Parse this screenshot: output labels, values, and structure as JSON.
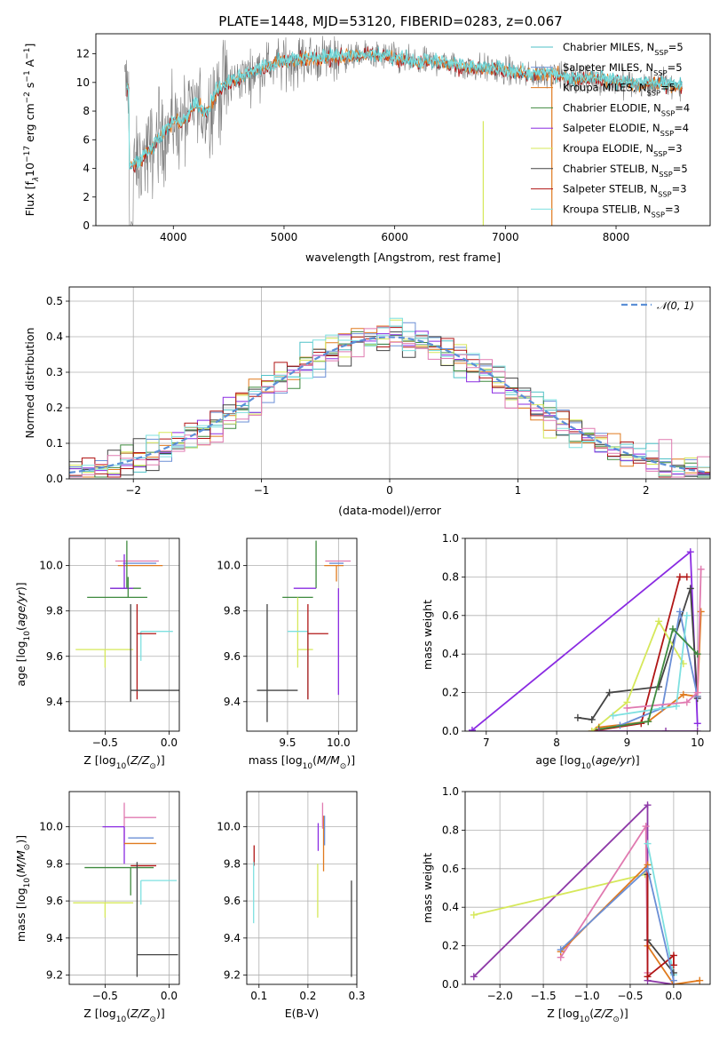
{
  "title": "PLATE=1448, MJD=53120, FIBERID=0283, z=0.067",
  "colors": {
    "Chabrier MILES": "#4fc1c7",
    "Salpeter MILES": "#6b8fd6",
    "Kroupa MILES": "#e07a1e",
    "Chabrier ELODIE": "#3f8a3f",
    "Salpeter ELODIE": "#8a2be2",
    "Kroupa ELODIE": "#d6e85a",
    "Chabrier STELIB": "#444444",
    "Salpeter STELIB": "#b01515",
    "Kroupa STELIB": "#7ee0e0",
    "pink": "#e07ab0",
    "purple2": "#8e3aa8"
  },
  "chart_data": [
    {
      "type": "line",
      "id": "spectrum",
      "xlabel": "wavelength [Angstrom, rest frame]",
      "ylabel": "Flux [f$_\\lambda$10$^{-17}$ erg cm$^{-2}$ s$^{-1}$ A$^{-1}$]",
      "xlim": [
        3300,
        8850
      ],
      "ylim": [
        0,
        13.4
      ],
      "xticks": [
        4000,
        5000,
        6000,
        7000,
        8000
      ],
      "yticks": [
        0,
        2,
        4,
        6,
        8,
        10,
        12
      ],
      "legend_position": "upper right",
      "legend": [
        {
          "label": "Chabrier MILES, N",
          "sub": "SSP",
          "eq": "=5"
        },
        {
          "label": "Salpeter MILES, N",
          "sub": "SSP",
          "eq": "=5"
        },
        {
          "label": "Kroupa MILES, N",
          "sub": "SSP",
          "eq": "=5"
        },
        {
          "label": "Chabrier ELODIE, N",
          "sub": "SSP",
          "eq": "=4"
        },
        {
          "label": "Salpeter ELODIE, N",
          "sub": "SSP",
          "eq": "=4"
        },
        {
          "label": "Kroupa ELODIE, N",
          "sub": "SSP",
          "eq": "=3"
        },
        {
          "label": "Chabrier STELIB, N",
          "sub": "SSP",
          "eq": "=5"
        },
        {
          "label": "Salpeter STELIB, N",
          "sub": "SSP",
          "eq": "=3"
        },
        {
          "label": "Kroupa STELIB, N",
          "sub": "SSP",
          "eq": "=3"
        }
      ],
      "continuum": {
        "x": [
          3600,
          3700,
          3800,
          3900,
          4000,
          4100,
          4200,
          4300,
          4400,
          4500,
          4600,
          4800,
          5000,
          5200,
          5400,
          5600,
          5800,
          6000,
          6200,
          6400,
          6600,
          6800,
          7000,
          7200,
          7400,
          7600,
          7800,
          8000,
          8200,
          8400,
          8600
        ],
        "y": [
          4.0,
          4.5,
          5.3,
          6.3,
          7.2,
          7.3,
          8.4,
          7.8,
          9.4,
          9.9,
          10.3,
          11.0,
          11.4,
          11.6,
          11.7,
          11.8,
          11.9,
          11.7,
          11.3,
          11.4,
          11.1,
          11.0,
          10.8,
          10.5,
          10.6,
          10.2,
          10.3,
          10.0,
          9.8,
          9.9,
          9.6
        ]
      },
      "data_dropouts": [
        [
          6800,
          7.3
        ],
        [
          7420,
          10.9
        ]
      ]
    },
    {
      "type": "bar",
      "id": "residual-histogram",
      "xlabel": "(data-model)/error",
      "ylabel": "Normed distribution",
      "xlim": [
        -2.5,
        2.5
      ],
      "ylim": [
        0,
        0.54
      ],
      "xticks": [
        -2,
        -1,
        0,
        1,
        2
      ],
      "yticks": [
        0.0,
        0.1,
        0.2,
        0.3,
        0.4,
        0.5
      ],
      "legend": [
        {
          "label": "𝒩(0, 1)"
        }
      ],
      "legend_position": "upper right",
      "gaussian": {
        "mu": 0,
        "sigma": 1
      },
      "bin_width": 0.1
    },
    {
      "type": "scatter",
      "id": "age-vs-Z",
      "xlabel": "Z [log10(Z/Z⊙)]",
      "ylabel": "age  [log10(age/yr)]",
      "xlim": [
        -0.78,
        0.08
      ],
      "ylim": [
        9.27,
        10.12
      ],
      "xticks": [
        -0.5,
        0.0
      ],
      "xticklabels": [
        "−0.5",
        "0.0"
      ],
      "yticks": [
        9.4,
        9.6,
        9.8,
        10.0
      ],
      "points": [
        {
          "x": -0.22,
          "y": 10.02,
          "xerr": [
            0.2,
            0.14
          ],
          "yerr": [
            0.0,
            0.0
          ],
          "c": "pink"
        },
        {
          "x": -0.2,
          "y": 10.01,
          "xerr": [
            0.16,
            0.1
          ],
          "yerr": [
            0.0,
            0.0
          ],
          "c": "Salpeter MILES"
        },
        {
          "x": -0.25,
          "y": 10.0,
          "xerr": [
            0.15,
            0.2
          ],
          "yerr": [
            0.0,
            0.0
          ],
          "c": "Kroupa MILES"
        },
        {
          "x": -0.33,
          "y": 9.9,
          "xerr": [
            0.13,
            0.11
          ],
          "yerr": [
            0.0,
            0.21
          ],
          "c": "Chabrier ELODIE"
        },
        {
          "x": -0.35,
          "y": 9.9,
          "xerr": [
            0.11,
            0.07
          ],
          "yerr": [
            0.0,
            0.15
          ],
          "c": "Salpeter ELODIE"
        },
        {
          "x": -0.32,
          "y": 9.86,
          "xerr": [
            0.32,
            0.15
          ],
          "yerr": [
            0.0,
            0.09
          ],
          "c": "Chabrier ELODIE"
        },
        {
          "x": -0.5,
          "y": 9.63,
          "xerr": [
            0.23,
            0.22
          ],
          "yerr": [
            0.08,
            0.0
          ],
          "c": "Kroupa ELODIE"
        },
        {
          "x": -0.22,
          "y": 9.71,
          "xerr": [
            0.0,
            0.25
          ],
          "yerr": [
            0.13,
            0.0
          ],
          "c": "Kroupa STELIB"
        },
        {
          "x": -0.25,
          "y": 9.7,
          "xerr": [
            0.0,
            0.15
          ],
          "yerr": [
            0.29,
            0.13
          ],
          "c": "Salpeter STELIB"
        },
        {
          "x": -0.3,
          "y": 9.45,
          "xerr": [
            0.0,
            0.38
          ],
          "yerr": [
            0.0,
            0.0
          ],
          "c": "Chabrier STELIB"
        },
        {
          "x": -0.3,
          "y": 9.45,
          "xerr": [
            0.0,
            0.0
          ],
          "yerr": [
            0.05,
            0.38
          ],
          "c": "Chabrier STELIB"
        }
      ]
    },
    {
      "type": "scatter",
      "id": "age-vs-mass",
      "xlabel": "mass [log10(M/M⊙)]",
      "ylabel": "",
      "xlim": [
        9.1,
        10.18
      ],
      "ylim": [
        9.27,
        10.12
      ],
      "xticks": [
        9.5,
        10.0
      ],
      "xticklabels": [
        "9.5",
        "10.0"
      ],
      "yticks": [
        9.4,
        9.6,
        9.8,
        10.0
      ],
      "points": [
        {
          "x": 10.0,
          "y": 10.02,
          "xerr": [
            0.13,
            0.12
          ],
          "yerr": [
            0.0,
            0.0
          ],
          "c": "pink"
        },
        {
          "x": 9.98,
          "y": 10.01,
          "xerr": [
            0.07,
            0.07
          ],
          "yerr": [
            0.0,
            0.0
          ],
          "c": "Salpeter MILES"
        },
        {
          "x": 9.98,
          "y": 10.0,
          "xerr": [
            0.12,
            0.07
          ],
          "yerr": [
            0.07,
            0.0
          ],
          "c": "Kroupa MILES"
        },
        {
          "x": 9.78,
          "y": 9.9,
          "xerr": [
            0.0,
            0.0
          ],
          "yerr": [
            0.0,
            0.21
          ],
          "c": "Chabrier ELODIE"
        },
        {
          "x": 9.78,
          "y": 9.9,
          "xerr": [
            0.22,
            0.0
          ],
          "yerr": [
            0.0,
            0.0
          ],
          "c": "Salpeter ELODIE"
        },
        {
          "x": 10.0,
          "y": 9.9,
          "xerr": [
            0.0,
            0.0
          ],
          "yerr": [
            0.47,
            0.0
          ],
          "c": "Salpeter ELODIE"
        },
        {
          "x": 9.6,
          "y": 9.86,
          "xerr": [
            0.15,
            0.15
          ],
          "yerr": [
            0.0,
            0.0
          ],
          "c": "Chabrier ELODIE"
        },
        {
          "x": 9.6,
          "y": 9.63,
          "xerr": [
            0.0,
            0.15
          ],
          "yerr": [
            0.08,
            0.23
          ],
          "c": "Kroupa ELODIE"
        },
        {
          "x": 9.7,
          "y": 9.71,
          "xerr": [
            0.2,
            0.0
          ],
          "yerr": [
            0.3,
            0.0
          ],
          "c": "Kroupa STELIB"
        },
        {
          "x": 9.7,
          "y": 9.7,
          "xerr": [
            0.0,
            0.2
          ],
          "yerr": [
            0.29,
            0.13
          ],
          "c": "Salpeter STELIB"
        },
        {
          "x": 9.3,
          "y": 9.45,
          "xerr": [
            0.1,
            0.3
          ],
          "yerr": [
            0.14,
            0.38
          ],
          "c": "Chabrier STELIB"
        }
      ]
    },
    {
      "type": "line",
      "id": "massweight-vs-age",
      "xlabel": "age  [log10(age/yr)]",
      "ylabel": "mass weight",
      "xlim": [
        6.7,
        10.18
      ],
      "ylim": [
        0,
        1.0
      ],
      "xticks": [
        7,
        8,
        9,
        10
      ],
      "yticks": [
        0.0,
        0.2,
        0.4,
        0.6,
        0.8,
        1.0
      ],
      "series": [
        {
          "c": "Salpeter ELODIE",
          "x": [
            6.8,
            9.9,
            10.0
          ],
          "y": [
            0.005,
            0.93,
            0.04
          ]
        },
        {
          "c": "Salpeter STELIB",
          "x": [
            8.5,
            9.2,
            9.75,
            9.85
          ],
          "y": [
            0.0,
            0.04,
            0.8,
            0.8
          ]
        },
        {
          "c": "Chabrier STELIB",
          "x": [
            8.3,
            8.5,
            8.75,
            9.45,
            9.9,
            10.0
          ],
          "y": [
            0.07,
            0.06,
            0.2,
            0.23,
            0.74,
            0.17
          ]
        },
        {
          "c": "Kroupa ELODIE",
          "x": [
            8.5,
            9.0,
            9.45,
            9.8
          ],
          "y": [
            0.0,
            0.15,
            0.57,
            0.35
          ]
        },
        {
          "c": "Kroupa MILES",
          "x": [
            8.6,
            9.3,
            9.8,
            10.0,
            10.05
          ],
          "y": [
            0.02,
            0.05,
            0.19,
            0.18,
            0.62
          ]
        },
        {
          "c": "Salpeter MILES",
          "x": [
            8.9,
            9.5,
            9.75,
            10.0
          ],
          "y": [
            0.03,
            0.12,
            0.62,
            0.18
          ]
        },
        {
          "c": "Kroupa STELIB",
          "x": [
            8.8,
            9.7,
            9.85
          ],
          "y": [
            0.08,
            0.13,
            0.6
          ]
        },
        {
          "c": "pink",
          "x": [
            9.0,
            9.85,
            10.0,
            10.05
          ],
          "y": [
            0.12,
            0.15,
            0.2,
            0.84
          ]
        },
        {
          "c": "Chabrier ELODIE",
          "x": [
            8.6,
            9.3,
            9.65,
            10.0
          ],
          "y": [
            0.01,
            0.05,
            0.53,
            0.4
          ]
        },
        {
          "c": "purple2",
          "x": [
            8.6,
            9.55,
            10.0
          ],
          "y": [
            0.0,
            0.0,
            0.0
          ]
        }
      ]
    },
    {
      "type": "scatter",
      "id": "mass-vs-Z",
      "xlabel": "Z [log10(Z/Z⊙)]",
      "ylabel": "mass [log10(M/M⊙)]",
      "xlim": [
        -0.78,
        0.08
      ],
      "ylim": [
        9.15,
        10.19
      ],
      "xticks": [
        -0.5,
        0.0
      ],
      "xticklabels": [
        "−0.5",
        "0.0"
      ],
      "yticks": [
        9.2,
        9.4,
        9.6,
        9.8,
        10.0
      ],
      "points": [
        {
          "x": -0.35,
          "y": 10.05,
          "xerr": [
            0.0,
            0.25
          ],
          "yerr": [
            0.15,
            0.08
          ],
          "c": "pink"
        },
        {
          "x": -0.35,
          "y": 10.0,
          "xerr": [
            0.17,
            0.0
          ],
          "yerr": [
            0.2,
            0.0
          ],
          "c": "Salpeter ELODIE"
        },
        {
          "x": -0.22,
          "y": 9.94,
          "xerr": [
            0.1,
            0.1
          ],
          "yerr": [
            0.0,
            0.0
          ],
          "c": "Salpeter MILES"
        },
        {
          "x": -0.25,
          "y": 9.91,
          "xerr": [
            0.1,
            0.15
          ],
          "yerr": [
            0.0,
            0.0
          ],
          "c": "Kroupa MILES"
        },
        {
          "x": -0.3,
          "y": 9.78,
          "xerr": [
            0.36,
            0.18
          ],
          "yerr": [
            0.15,
            0.0
          ],
          "c": "Chabrier ELODIE"
        },
        {
          "x": -0.3,
          "y": 9.79,
          "xerr": [
            0.0,
            0.2
          ],
          "yerr": [
            0.0,
            0.0
          ],
          "c": "Salpeter STELIB"
        },
        {
          "x": -0.5,
          "y": 9.59,
          "xerr": [
            0.25,
            0.22
          ],
          "yerr": [
            0.08,
            0.0
          ],
          "c": "Kroupa ELODIE"
        },
        {
          "x": -0.22,
          "y": 9.71,
          "xerr": [
            0.0,
            0.28
          ],
          "yerr": [
            0.13,
            0.0
          ],
          "c": "Kroupa STELIB"
        },
        {
          "x": -0.25,
          "y": 9.31,
          "xerr": [
            0.0,
            0.32
          ],
          "yerr": [
            0.12,
            0.5
          ],
          "c": "Chabrier STELIB"
        }
      ]
    },
    {
      "type": "scatter",
      "id": "mass-vs-EBV",
      "xlabel": "E(B-V)",
      "ylabel": "",
      "xlim": [
        0.075,
        0.3
      ],
      "ylim": [
        9.15,
        10.19
      ],
      "xticks": [
        0.1,
        0.2,
        0.3
      ],
      "xticklabels": [
        "0.1",
        "0.2",
        "0.3"
      ],
      "yticks": [
        9.2,
        9.4,
        9.6,
        9.8,
        10.0
      ],
      "points": [
        {
          "x": 0.09,
          "y": 9.85,
          "xerr": [
            0,
            0
          ],
          "yerr": [
            0.06,
            0.05
          ],
          "c": "Salpeter STELIB"
        },
        {
          "x": 0.089,
          "y": 9.65,
          "xerr": [
            0,
            0
          ],
          "yerr": [
            0.17,
            0.16
          ],
          "c": "Kroupa STELIB"
        },
        {
          "x": 0.221,
          "y": 9.95,
          "xerr": [
            0,
            0
          ],
          "yerr": [
            0.08,
            0.07
          ],
          "c": "Salpeter ELODIE"
        },
        {
          "x": 0.22,
          "y": 9.7,
          "xerr": [
            0,
            0
          ],
          "yerr": [
            0.19,
            0.1
          ],
          "c": "Kroupa ELODIE"
        },
        {
          "x": 0.232,
          "y": 9.92,
          "xerr": [
            0,
            0
          ],
          "yerr": [
            0.16,
            0.14
          ],
          "c": "Kroupa MILES"
        },
        {
          "x": 0.23,
          "y": 10.05,
          "xerr": [
            0,
            0
          ],
          "yerr": [
            0.06,
            0.08
          ],
          "c": "pink"
        },
        {
          "x": 0.234,
          "y": 9.98,
          "xerr": [
            0,
            0
          ],
          "yerr": [
            0.08,
            0.08
          ],
          "c": "Salpeter MILES"
        },
        {
          "x": 0.289,
          "y": 9.45,
          "xerr": [
            0,
            0
          ],
          "yerr": [
            0.26,
            0.26
          ],
          "c": "Chabrier STELIB"
        }
      ]
    },
    {
      "type": "line",
      "id": "massweight-vs-Z",
      "xlabel": "Z [log10(Z/Z⊙)]",
      "ylabel": "mass weight",
      "xlim": [
        -2.4,
        0.42
      ],
      "ylim": [
        0,
        1.0
      ],
      "xticks": [
        -2.0,
        -1.5,
        -1.0,
        -0.5,
        0.0
      ],
      "xticklabels": [
        "−2.0",
        "−1.5",
        "−1.0",
        "−0.5",
        "0.0"
      ],
      "yticks": [
        0.0,
        0.2,
        0.4,
        0.6,
        0.8,
        1.0
      ],
      "series": [
        {
          "c": "purple2",
          "x": [
            -2.3,
            -0.3,
            -0.3,
            0.0
          ],
          "y": [
            0.04,
            0.93,
            0.02,
            0.0
          ]
        },
        {
          "c": "Kroupa ELODIE",
          "x": [
            -2.3,
            -0.33
          ],
          "y": [
            0.36,
            0.57
          ]
        },
        {
          "c": "pink",
          "x": [
            -1.3,
            -0.32,
            -0.3
          ],
          "y": [
            0.14,
            0.82,
            0.06
          ]
        },
        {
          "c": "Kroupa MILES",
          "x": [
            -1.3,
            -0.3,
            -0.3,
            0.0,
            0.3
          ],
          "y": [
            0.17,
            0.62,
            0.2,
            0.0,
            0.02
          ]
        },
        {
          "c": "Kroupa STELIB",
          "x": [
            -0.3,
            0.0
          ],
          "y": [
            0.73,
            0.05
          ]
        },
        {
          "c": "Chabrier STELIB",
          "x": [
            -0.3,
            -0.3,
            0.0
          ],
          "y": [
            0.57,
            0.23,
            0.06
          ]
        },
        {
          "c": "Salpeter STELIB",
          "x": [
            -0.3,
            -0.3,
            0.0,
            0.0
          ],
          "y": [
            0.6,
            0.04,
            0.15,
            0.1
          ]
        },
        {
          "c": "Salpeter MILES",
          "x": [
            -1.3,
            -0.3,
            0.0
          ],
          "y": [
            0.18,
            0.6,
            0.02
          ]
        }
      ]
    }
  ]
}
